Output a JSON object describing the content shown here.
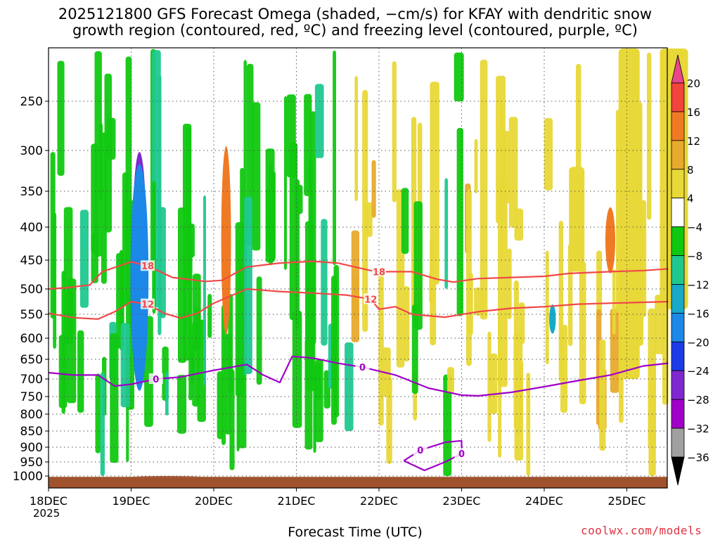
{
  "title_line1": "2025121800 GFS Forecast Omega (shaded, −cm/s) for KFAY with dendritic snow",
  "title_line2": "growth region (contoured, red, ºC) and freezing level (contoured, purple, ºC)",
  "credit": "coolwx.com/models",
  "chart_data": {
    "type": "heatmap",
    "xlabel": "Forecast Time (UTC)",
    "year_label": "2025",
    "x_ticks": [
      "18DEC",
      "19DEC",
      "20DEC",
      "21DEC",
      "22DEC",
      "23DEC",
      "24DEC",
      "25DEC"
    ],
    "y_ticks": [
      "250",
      "300",
      "350",
      "400",
      "450",
      "500",
      "550",
      "600",
      "650",
      "700",
      "750",
      "800",
      "850",
      "900",
      "950",
      "1000"
    ],
    "ylim_hpa": [
      200,
      1020
    ],
    "xlim_days_label": [
      "18DEC 00Z",
      "25DEC 12Z"
    ],
    "colorbar": {
      "labels": [
        "20",
        "16",
        "12",
        "8",
        "4",
        "−4",
        "−8",
        "−12",
        "−16",
        "−20",
        "−24",
        "−28",
        "−32",
        "−36"
      ],
      "colors": [
        "#e8458a",
        "#f0443c",
        "#f07a24",
        "#e8aa2c",
        "#e8d838",
        "#ffffff",
        "#10c810",
        "#20c890",
        "#18a8c8",
        "#1c88e8",
        "#1c3ce8",
        "#8028d0",
        "#a000c8",
        "#a0a0a0",
        "#000000"
      ]
    },
    "contours": [
      {
        "color": "#f04848",
        "label": "18",
        "points": [
          [
            0.0,
            500
          ],
          [
            0.2,
            498
          ],
          [
            0.5,
            493
          ],
          [
            0.65,
            470
          ],
          [
            1.0,
            453
          ],
          [
            1.2,
            460
          ],
          [
            1.5,
            480
          ],
          [
            1.9,
            487
          ],
          [
            2.1,
            485
          ],
          [
            2.4,
            462
          ],
          [
            2.8,
            455
          ],
          [
            3.2,
            452
          ],
          [
            3.5,
            455
          ],
          [
            3.9,
            468
          ],
          [
            4.0,
            470
          ],
          [
            4.4,
            470
          ],
          [
            4.7,
            483
          ],
          [
            4.9,
            488
          ],
          [
            5.2,
            482
          ],
          [
            5.6,
            480
          ],
          [
            6.0,
            478
          ],
          [
            6.3,
            473
          ],
          [
            6.8,
            470
          ],
          [
            7.2,
            468
          ],
          [
            7.5,
            465
          ]
        ]
      },
      {
        "color": "#f04848",
        "label": "12",
        "points": [
          [
            0.0,
            548
          ],
          [
            0.3,
            557
          ],
          [
            0.6,
            560
          ],
          [
            0.8,
            545
          ],
          [
            1.0,
            525
          ],
          [
            1.2,
            530
          ],
          [
            1.4,
            548
          ],
          [
            1.6,
            558
          ],
          [
            1.8,
            548
          ],
          [
            2.0,
            528
          ],
          [
            2.4,
            500
          ],
          [
            2.8,
            505
          ],
          [
            3.2,
            508
          ],
          [
            3.6,
            512
          ],
          [
            3.9,
            520
          ],
          [
            4.0,
            540
          ],
          [
            4.2,
            535
          ],
          [
            4.4,
            550
          ],
          [
            4.8,
            556
          ],
          [
            5.2,
            545
          ],
          [
            5.6,
            538
          ],
          [
            6.0,
            535
          ],
          [
            6.4,
            530
          ],
          [
            6.8,
            528
          ],
          [
            7.5,
            525
          ]
        ]
      },
      {
        "color": "#a000c8",
        "label": "0",
        "points": [
          [
            0.0,
            684
          ],
          [
            0.3,
            690
          ],
          [
            0.6,
            690
          ],
          [
            0.8,
            720
          ],
          [
            1.0,
            715
          ],
          [
            1.3,
            700
          ],
          [
            1.6,
            695
          ],
          [
            2.0,
            678
          ],
          [
            2.4,
            663
          ],
          [
            2.6,
            690
          ],
          [
            2.8,
            710
          ],
          [
            2.95,
            643
          ],
          [
            3.2,
            647
          ],
          [
            3.5,
            660
          ],
          [
            3.8,
            670
          ],
          [
            4.2,
            690
          ],
          [
            4.6,
            726
          ],
          [
            5.0,
            746
          ],
          [
            5.2,
            748
          ],
          [
            5.6,
            738
          ],
          [
            6.0,
            722
          ],
          [
            6.4,
            705
          ],
          [
            6.8,
            690
          ],
          [
            7.2,
            667
          ],
          [
            7.5,
            660
          ]
        ]
      },
      {
        "color": "#a000c8",
        "label": "0",
        "points": [
          [
            4.3,
            946
          ],
          [
            4.5,
            910
          ],
          [
            4.8,
            885
          ],
          [
            5.0,
            880
          ],
          [
            5.0,
            922
          ],
          [
            4.8,
            950
          ],
          [
            4.55,
            980
          ],
          [
            4.3,
            946
          ]
        ]
      }
    ],
    "omega_blobs": [
      {
        "day": 1.05,
        "p": 420,
        "w": 0.09,
        "h": 160,
        "value": -36
      },
      {
        "day": 1.1,
        "p": 410,
        "w": 0.16,
        "h": 240,
        "value": -28
      },
      {
        "day": 1.1,
        "p": 480,
        "w": 0.22,
        "h": 380,
        "value": -20
      },
      {
        "day": 6.1,
        "p": 560,
        "w": 0.08,
        "h": 60,
        "value": -16
      },
      {
        "day": 6.8,
        "p": 420,
        "w": 0.12,
        "h": 100,
        "value": 12
      },
      {
        "day": 2.15,
        "p": 420,
        "w": 0.12,
        "h": 280,
        "value": 12
      }
    ],
    "grid": "dotted",
    "terrain_color": "#a0522d"
  }
}
